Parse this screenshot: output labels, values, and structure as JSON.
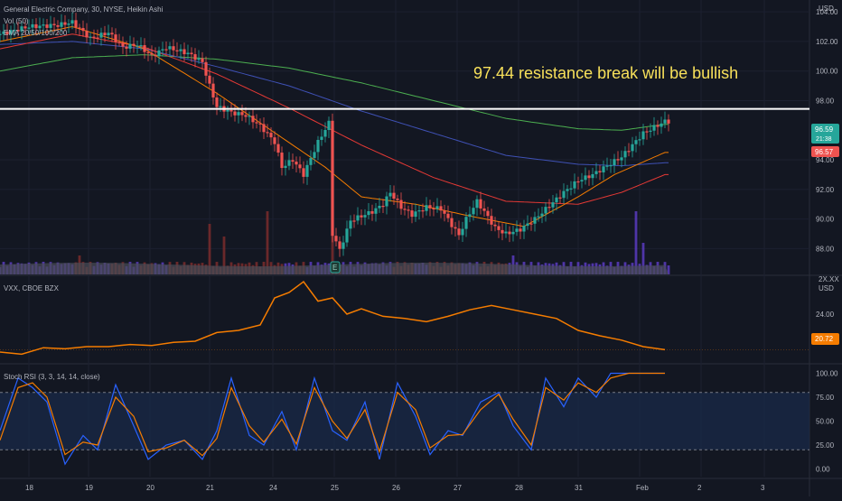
{
  "header": {
    "title": "General Electric Company, 30, NYSE, Heikin Ashi",
    "vol_label": "Vol (50)",
    "ema_label": "EMA 20/50/100/200",
    "currency": "USD"
  },
  "annotation": {
    "text": "97.44 resistance break will be bullish",
    "level": 97.44
  },
  "price_tags": {
    "last_price": "96.59",
    "countdown": "21:38",
    "ema_value": "96.57",
    "last_color": "#26a69a",
    "ema_color": "#ef5350"
  },
  "earnings_marker": "E",
  "vxx": {
    "label": "VXX, CBOE BZX",
    "currency": "USD",
    "last": "20.72",
    "axis_top": "2X.XX",
    "color": "#f57c00"
  },
  "stoch": {
    "label": "Stoch RSI (3, 3, 14, 14, close)",
    "k_color": "#2962ff",
    "d_color": "#f57c00"
  },
  "x_ticks": [
    "18",
    "19",
    "20",
    "21",
    "24",
    "25",
    "26",
    "27",
    "28",
    "31",
    "Feb",
    "2",
    "3"
  ],
  "chart_data": [
    {
      "type": "candlestick",
      "title": "General Electric Company, 30, NYSE, Heikin Ashi",
      "ylabel": "USD",
      "y_ticks": [
        "104.00",
        "102.00",
        "100.00",
        "98.00",
        "94.00",
        "92.00",
        "90.00",
        "88.00"
      ],
      "ylim": [
        86.5,
        104.8
      ],
      "candle_count": 186,
      "close_path": [
        [
          0,
          102.5
        ],
        [
          8,
          103.0
        ],
        [
          16,
          103.1
        ],
        [
          20,
          103.3
        ],
        [
          25,
          102.2
        ],
        [
          30,
          102.6
        ],
        [
          34,
          101.6
        ],
        [
          38,
          101.8
        ],
        [
          42,
          101.0
        ],
        [
          46,
          101.6
        ],
        [
          52,
          101.2
        ],
        [
          56,
          100.6
        ],
        [
          58,
          99.0
        ],
        [
          60,
          97.6
        ],
        [
          64,
          97.2
        ],
        [
          68,
          97.0
        ],
        [
          72,
          96.3
        ],
        [
          76,
          95.2
        ],
        [
          78,
          93.5
        ],
        [
          81,
          94.0
        ],
        [
          84,
          93.0
        ],
        [
          88,
          95.2
        ],
        [
          91,
          96.5
        ],
        [
          92,
          89.0
        ],
        [
          94,
          87.9
        ],
        [
          97,
          89.9
        ],
        [
          100,
          90.2
        ],
        [
          103,
          90.5
        ],
        [
          106,
          91.0
        ],
        [
          108,
          91.8
        ],
        [
          111,
          90.8
        ],
        [
          114,
          90.3
        ],
        [
          118,
          90.8
        ],
        [
          122,
          90.7
        ],
        [
          125,
          89.6
        ],
        [
          127,
          88.9
        ],
        [
          129,
          90.0
        ],
        [
          132,
          91.2
        ],
        [
          134,
          90.5
        ],
        [
          137,
          89.4
        ],
        [
          140,
          89.0
        ],
        [
          144,
          89.3
        ],
        [
          148,
          90.0
        ],
        [
          152,
          90.9
        ],
        [
          156,
          91.8
        ],
        [
          160,
          92.6
        ],
        [
          164,
          93.0
        ],
        [
          168,
          93.6
        ],
        [
          172,
          94.2
        ],
        [
          175,
          95.0
        ],
        [
          178,
          95.8
        ],
        [
          181,
          96.2
        ],
        [
          184,
          96.6
        ]
      ],
      "ema_20": [
        [
          0,
          102.0
        ],
        [
          20,
          103.0
        ],
        [
          40,
          101.5
        ],
        [
          60,
          98.5
        ],
        [
          75,
          96.0
        ],
        [
          90,
          93.5
        ],
        [
          100,
          91.5
        ],
        [
          115,
          91.0
        ],
        [
          130,
          90.2
        ],
        [
          145,
          89.5
        ],
        [
          160,
          91.5
        ],
        [
          170,
          93.0
        ],
        [
          184,
          94.5
        ]
      ],
      "ema_50": [
        [
          0,
          101.5
        ],
        [
          20,
          102.5
        ],
        [
          40,
          101.6
        ],
        [
          60,
          99.8
        ],
        [
          80,
          97.5
        ],
        [
          100,
          95.0
        ],
        [
          120,
          92.8
        ],
        [
          140,
          91.2
        ],
        [
          160,
          91.0
        ],
        [
          172,
          91.8
        ],
        [
          184,
          93.0
        ]
      ],
      "ema_100": [
        [
          0,
          101.8
        ],
        [
          20,
          102.0
        ],
        [
          40,
          101.5
        ],
        [
          60,
          100.3
        ],
        [
          80,
          99.0
        ],
        [
          100,
          97.3
        ],
        [
          120,
          95.8
        ],
        [
          140,
          94.3
        ],
        [
          160,
          93.7
        ],
        [
          172,
          93.6
        ],
        [
          184,
          93.8
        ]
      ],
      "ema_200": [
        [
          0,
          100.0
        ],
        [
          20,
          100.9
        ],
        [
          40,
          101.1
        ],
        [
          60,
          100.8
        ],
        [
          80,
          100.2
        ],
        [
          100,
          99.2
        ],
        [
          120,
          98.0
        ],
        [
          140,
          96.8
        ],
        [
          160,
          96.1
        ],
        [
          172,
          96.0
        ],
        [
          184,
          96.4
        ]
      ],
      "volume_spikes": [
        [
          22,
          0.3
        ],
        [
          25,
          0.2
        ],
        [
          58,
          0.8
        ],
        [
          62,
          0.6
        ],
        [
          74,
          1.0
        ],
        [
          92,
          0.7
        ],
        [
          142,
          0.3
        ],
        [
          176,
          1.0
        ],
        [
          178,
          0.5
        ]
      ],
      "colors": {
        "up": "#26a69a",
        "down": "#ef5350",
        "ema20": "#f57c00",
        "ema50": "#e53935",
        "ema100": "#3f51b5",
        "ema200": "#4caf50"
      }
    },
    {
      "type": "line",
      "title": "VXX, CBOE BZX",
      "ylabel": "USD",
      "y_ticks": [
        "24.00",
        "20.72"
      ],
      "ylim": [
        19.5,
        27.5
      ],
      "x": [
        0,
        6,
        12,
        18,
        24,
        30,
        36,
        42,
        48,
        54,
        60,
        66,
        72,
        76,
        80,
        84,
        88,
        92,
        96,
        100,
        106,
        112,
        118,
        124,
        130,
        136,
        142,
        148,
        154,
        160,
        166,
        172,
        178,
        184
      ],
      "values": [
        20.5,
        20.3,
        20.9,
        20.8,
        21.0,
        21.0,
        21.2,
        21.1,
        21.4,
        21.5,
        22.3,
        22.5,
        23.0,
        25.5,
        26.0,
        27.0,
        25.2,
        25.5,
        24.0,
        24.5,
        23.8,
        23.6,
        23.3,
        23.8,
        24.4,
        24.8,
        24.4,
        24.0,
        23.6,
        22.5,
        22.0,
        21.6,
        21.0,
        20.72
      ]
    },
    {
      "type": "line",
      "title": "Stoch RSI (3, 3, 14, 14, close)",
      "y_ticks": [
        "100.00",
        "75.00",
        "50.00",
        "25.00",
        "0.00"
      ],
      "ylim": [
        -8,
        108
      ],
      "band": [
        20,
        80
      ],
      "x": [
        0,
        5,
        9,
        13,
        18,
        23,
        27,
        32,
        37,
        41,
        46,
        51,
        56,
        60,
        64,
        69,
        73,
        78,
        82,
        87,
        92,
        96,
        101,
        105,
        110,
        115,
        119,
        124,
        128,
        133,
        138,
        142,
        147,
        151,
        156,
        160,
        165,
        169,
        174,
        178,
        184
      ],
      "series": [
        {
          "name": "K",
          "values": [
            40,
            95,
            85,
            70,
            5,
            35,
            20,
            88,
            45,
            10,
            25,
            30,
            10,
            40,
            95,
            35,
            25,
            60,
            20,
            95,
            40,
            30,
            70,
            10,
            90,
            55,
            15,
            40,
            35,
            70,
            80,
            45,
            20,
            95,
            65,
            95,
            75,
            100,
            100,
            100,
            100
          ]
        },
        {
          "name": "D",
          "values": [
            30,
            85,
            90,
            75,
            15,
            28,
            25,
            75,
            55,
            18,
            22,
            30,
            14,
            32,
            85,
            45,
            28,
            52,
            26,
            85,
            50,
            32,
            62,
            18,
            80,
            62,
            22,
            35,
            36,
            62,
            78,
            52,
            25,
            85,
            72,
            90,
            80,
            95,
            100,
            100,
            100
          ]
        }
      ]
    }
  ]
}
